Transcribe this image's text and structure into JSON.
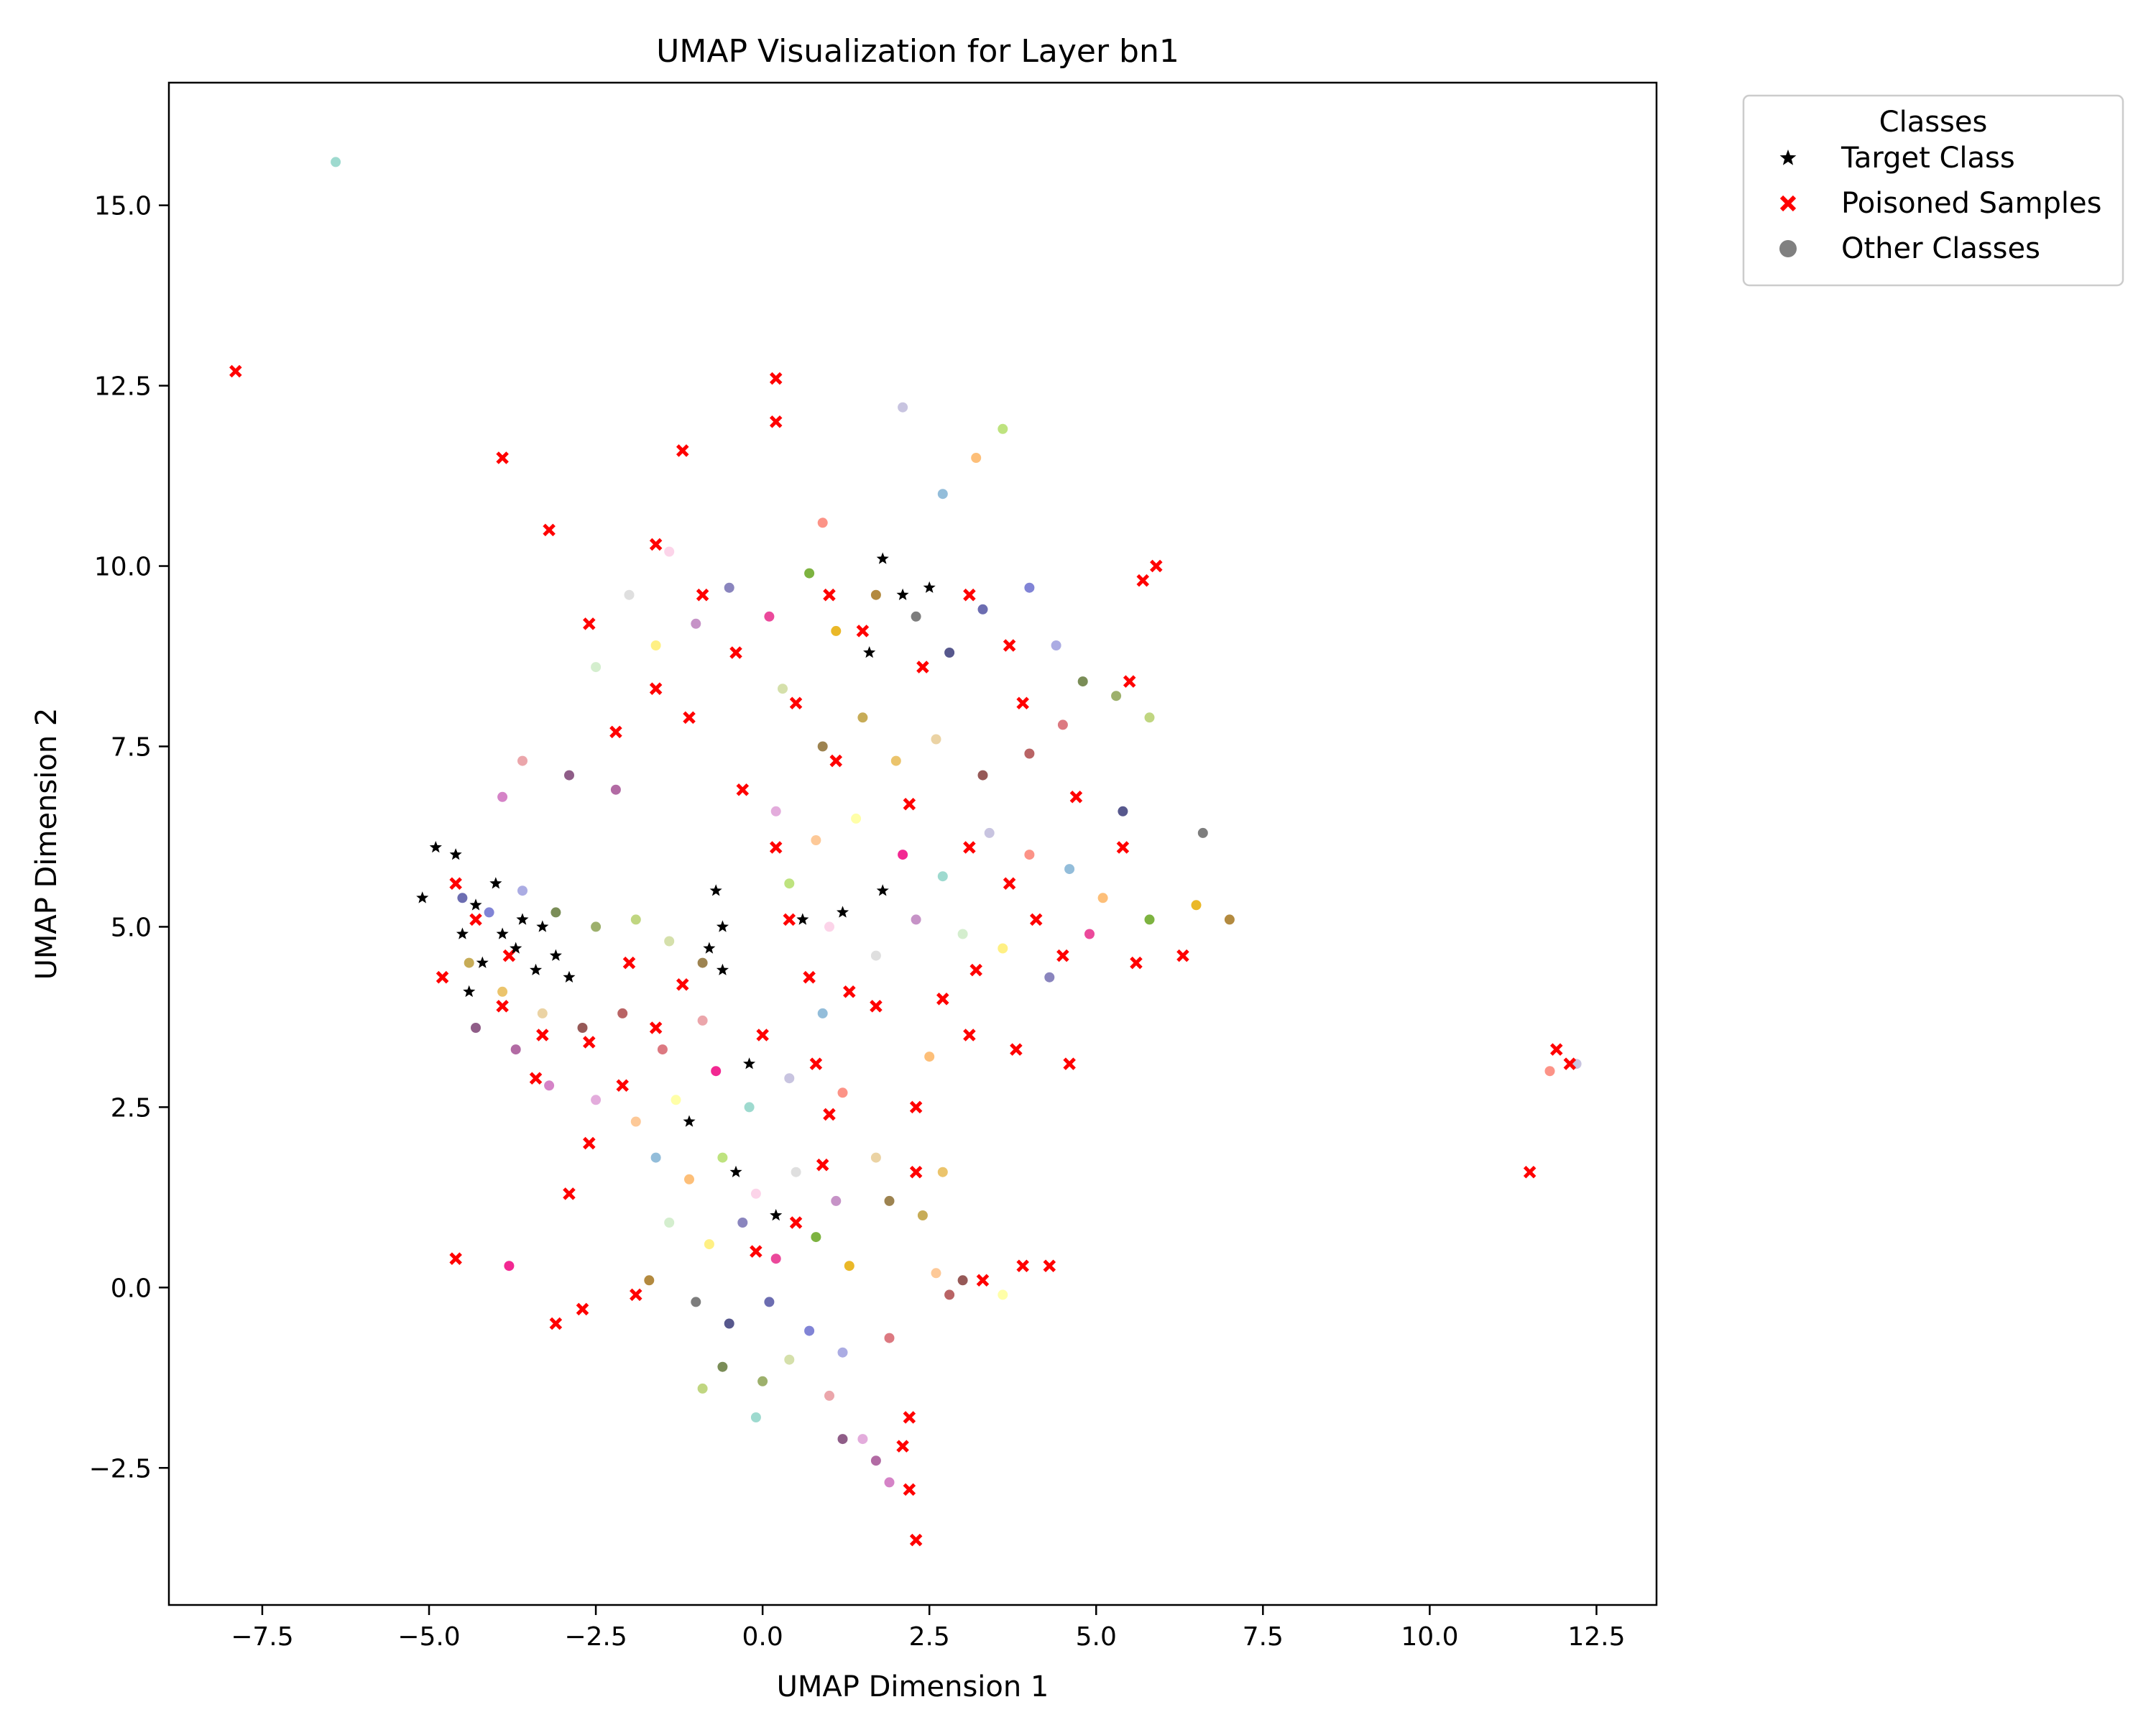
{
  "chart_data": {
    "type": "scatter",
    "title": "UMAP Visualization for Layer bn1",
    "xlabel": "UMAP Dimension 1",
    "ylabel": "UMAP Dimension 2",
    "xlim": [
      -8.9,
      13.4
    ],
    "ylim": [
      -4.4,
      16.7
    ],
    "grid": false,
    "x_ticks": [
      -7.5,
      -5.0,
      -2.5,
      0.0,
      2.5,
      5.0,
      7.5,
      10.0,
      12.5
    ],
    "x_tick_labels": [
      "−7.5",
      "−5.0",
      "−2.5",
      "0.0",
      "2.5",
      "5.0",
      "7.5",
      "10.0",
      "12.5"
    ],
    "y_ticks": [
      -2.5,
      0.0,
      2.5,
      5.0,
      7.5,
      10.0,
      12.5,
      15.0
    ],
    "y_tick_labels": [
      "−2.5",
      "0.0",
      "2.5",
      "5.0",
      "7.5",
      "10.0",
      "12.5",
      "15.0"
    ],
    "legend": {
      "title": "Classes",
      "placement": "outside-top-right",
      "entries": [
        {
          "label": "Target Class",
          "marker": "star",
          "color": "#000000"
        },
        {
          "label": "Poisoned Samples",
          "marker": "x",
          "color": "#ff0000"
        },
        {
          "label": "Other Classes",
          "marker": "circle",
          "color": "#808080"
        }
      ]
    },
    "palette": [
      "#8dd3c7",
      "#bebada",
      "#fb8072",
      "#80b1d3",
      "#fdb462",
      "#b3de69",
      "#fccde5",
      "#d9d9d9",
      "#bc80bd",
      "#ccebc5",
      "#ffed6f",
      "#7570b3",
      "#e7298a",
      "#66a61e",
      "#e6ab02",
      "#a6761d",
      "#666666",
      "#393b79",
      "#5254a3",
      "#6b6ecf",
      "#9c9ede",
      "#637939",
      "#8ca252",
      "#b5cf6b",
      "#cedb9c",
      "#8c6d31",
      "#bd9e39",
      "#e7ba52",
      "#e7cb94",
      "#843c39",
      "#ad494a",
      "#d6616b",
      "#e7969c",
      "#7b4173",
      "#a55194",
      "#ce6dbd",
      "#de9ed6",
      "#fdc086",
      "#ffff99",
      "#f0027f"
    ],
    "series": [
      {
        "name": "Target Class",
        "points": [
          [
            -5.1,
            5.4
          ],
          [
            -4.9,
            6.1
          ],
          [
            -4.6,
            6.0
          ],
          [
            -4.3,
            5.3
          ],
          [
            -4.5,
            4.9
          ],
          [
            -4.2,
            4.5
          ],
          [
            -4.4,
            4.1
          ],
          [
            -3.9,
            4.9
          ],
          [
            -3.6,
            5.1
          ],
          [
            -3.3,
            5.0
          ],
          [
            -3.1,
            4.6
          ],
          [
            -2.9,
            4.3
          ],
          [
            -3.4,
            4.4
          ],
          [
            -4.0,
            5.6
          ],
          [
            -3.7,
            4.7
          ],
          [
            -0.7,
            5.5
          ],
          [
            -0.6,
            5.0
          ],
          [
            -0.8,
            4.7
          ],
          [
            -0.6,
            4.4
          ],
          [
            0.6,
            5.1
          ],
          [
            1.2,
            5.2
          ],
          [
            1.8,
            5.5
          ],
          [
            1.6,
            8.8
          ],
          [
            2.1,
            9.6
          ],
          [
            2.5,
            9.7
          ],
          [
            1.8,
            10.1
          ],
          [
            0.2,
            1.0
          ],
          [
            -0.4,
            1.6
          ],
          [
            -0.2,
            3.1
          ],
          [
            -1.1,
            2.3
          ]
        ]
      },
      {
        "name": "Poisoned Samples",
        "points": [
          [
            -7.9,
            12.7
          ],
          [
            -3.9,
            11.5
          ],
          [
            -3.2,
            10.5
          ],
          [
            -1.2,
            11.6
          ],
          [
            0.2,
            12.6
          ],
          [
            0.2,
            12.0
          ],
          [
            -2.6,
            9.2
          ],
          [
            -1.6,
            10.3
          ],
          [
            -0.9,
            9.6
          ],
          [
            -1.6,
            8.3
          ],
          [
            -1.1,
            7.9
          ],
          [
            -2.2,
            7.7
          ],
          [
            -0.4,
            8.8
          ],
          [
            0.5,
            8.1
          ],
          [
            1.0,
            9.6
          ],
          [
            1.5,
            9.1
          ],
          [
            2.4,
            8.6
          ],
          [
            3.1,
            9.6
          ],
          [
            3.7,
            8.9
          ],
          [
            3.9,
            8.1
          ],
          [
            5.5,
            8.4
          ],
          [
            5.7,
            9.8
          ],
          [
            5.9,
            10.0
          ],
          [
            1.1,
            7.3
          ],
          [
            2.2,
            6.7
          ],
          [
            3.1,
            6.1
          ],
          [
            3.7,
            5.6
          ],
          [
            4.7,
            6.8
          ],
          [
            5.4,
            6.1
          ],
          [
            4.1,
            5.1
          ],
          [
            4.5,
            4.6
          ],
          [
            3.2,
            4.4
          ],
          [
            3.1,
            3.5
          ],
          [
            3.8,
            3.3
          ],
          [
            4.6,
            3.1
          ],
          [
            5.6,
            4.5
          ],
          [
            6.3,
            4.6
          ],
          [
            1.3,
            4.1
          ],
          [
            0.8,
            3.1
          ],
          [
            1.0,
            2.4
          ],
          [
            2.3,
            2.5
          ],
          [
            2.3,
            1.6
          ],
          [
            0.4,
            5.1
          ],
          [
            -0.3,
            6.9
          ],
          [
            0.2,
            6.1
          ],
          [
            -4.6,
            5.6
          ],
          [
            -4.3,
            5.1
          ],
          [
            -3.8,
            4.6
          ],
          [
            -3.9,
            3.9
          ],
          [
            -3.3,
            3.5
          ],
          [
            -3.4,
            2.9
          ],
          [
            -2.6,
            3.4
          ],
          [
            -2.1,
            2.8
          ],
          [
            -1.6,
            3.6
          ],
          [
            -1.2,
            4.2
          ],
          [
            -2.6,
            2.0
          ],
          [
            -2.9,
            1.3
          ],
          [
            -4.6,
            0.4
          ],
          [
            -3.1,
            -0.5
          ],
          [
            -2.7,
            -0.3
          ],
          [
            -1.9,
            -0.1
          ],
          [
            -0.1,
            0.5
          ],
          [
            0.5,
            0.9
          ],
          [
            0.9,
            1.7
          ],
          [
            2.1,
            -2.2
          ],
          [
            2.2,
            -1.8
          ],
          [
            2.2,
            -2.8
          ],
          [
            2.3,
            -3.5
          ],
          [
            3.3,
            0.1
          ],
          [
            3.9,
            0.3
          ],
          [
            4.3,
            0.3
          ],
          [
            11.9,
            3.3
          ],
          [
            12.1,
            3.1
          ],
          [
            11.5,
            1.6
          ],
          [
            -2.0,
            4.5
          ],
          [
            0.0,
            3.5
          ],
          [
            0.7,
            4.3
          ],
          [
            1.7,
            3.9
          ],
          [
            2.7,
            4.0
          ],
          [
            -4.8,
            4.3
          ]
        ]
      },
      {
        "name": "Other Classes",
        "points": [
          [
            -6.4,
            15.6
          ],
          [
            2.1,
            12.2
          ],
          [
            0.9,
            10.6
          ],
          [
            2.7,
            11.0
          ],
          [
            3.2,
            11.5
          ],
          [
            3.6,
            11.9
          ],
          [
            -1.4,
            10.2
          ],
          [
            -2.0,
            9.6
          ],
          [
            -1.0,
            9.2
          ],
          [
            -2.5,
            8.6
          ],
          [
            -1.6,
            8.9
          ],
          [
            -0.5,
            9.7
          ],
          [
            0.1,
            9.3
          ],
          [
            0.7,
            9.9
          ],
          [
            1.1,
            9.1
          ],
          [
            1.7,
            9.6
          ],
          [
            2.3,
            9.3
          ],
          [
            2.8,
            8.8
          ],
          [
            3.3,
            9.4
          ],
          [
            4.0,
            9.7
          ],
          [
            4.4,
            8.9
          ],
          [
            4.8,
            8.4
          ],
          [
            5.3,
            8.2
          ],
          [
            5.8,
            7.9
          ],
          [
            0.3,
            8.3
          ],
          [
            0.9,
            7.5
          ],
          [
            1.5,
            7.9
          ],
          [
            2.0,
            7.3
          ],
          [
            2.6,
            7.6
          ],
          [
            3.3,
            7.1
          ],
          [
            4.0,
            7.4
          ],
          [
            4.5,
            7.8
          ],
          [
            -3.6,
            7.3
          ],
          [
            -2.9,
            7.1
          ],
          [
            -2.2,
            6.9
          ],
          [
            -3.9,
            6.8
          ],
          [
            0.2,
            6.6
          ],
          [
            0.8,
            6.2
          ],
          [
            1.4,
            6.5
          ],
          [
            2.1,
            6.0
          ],
          [
            2.7,
            5.7
          ],
          [
            3.4,
            6.3
          ],
          [
            4.0,
            6.0
          ],
          [
            4.6,
            5.8
          ],
          [
            5.1,
            5.4
          ],
          [
            0.4,
            5.6
          ],
          [
            1.0,
            5.0
          ],
          [
            1.7,
            4.6
          ],
          [
            2.3,
            5.1
          ],
          [
            3.0,
            4.9
          ],
          [
            3.6,
            4.7
          ],
          [
            4.3,
            4.3
          ],
          [
            4.9,
            4.9
          ],
          [
            5.8,
            5.1
          ],
          [
            6.5,
            5.3
          ],
          [
            7.0,
            5.1
          ],
          [
            6.6,
            6.3
          ],
          [
            5.4,
            6.6
          ],
          [
            -4.5,
            5.4
          ],
          [
            -4.1,
            5.2
          ],
          [
            -3.6,
            5.5
          ],
          [
            -3.1,
            5.2
          ],
          [
            -2.5,
            5.0
          ],
          [
            -1.9,
            5.1
          ],
          [
            -1.4,
            4.8
          ],
          [
            -0.9,
            4.5
          ],
          [
            -4.4,
            4.5
          ],
          [
            -3.9,
            4.1
          ],
          [
            -3.3,
            3.8
          ],
          [
            -2.7,
            3.6
          ],
          [
            -2.1,
            3.8
          ],
          [
            -1.5,
            3.3
          ],
          [
            -0.9,
            3.7
          ],
          [
            -4.3,
            3.6
          ],
          [
            -3.7,
            3.3
          ],
          [
            -3.2,
            2.8
          ],
          [
            -2.5,
            2.6
          ],
          [
            -1.9,
            2.3
          ],
          [
            -1.3,
            2.6
          ],
          [
            -0.7,
            3.0
          ],
          [
            -0.2,
            2.5
          ],
          [
            0.4,
            2.9
          ],
          [
            1.2,
            2.7
          ],
          [
            -1.6,
            1.8
          ],
          [
            -1.1,
            1.5
          ],
          [
            -0.6,
            1.8
          ],
          [
            -0.1,
            1.3
          ],
          [
            0.5,
            1.6
          ],
          [
            1.1,
            1.2
          ],
          [
            -1.4,
            0.9
          ],
          [
            -0.8,
            0.6
          ],
          [
            -0.3,
            0.9
          ],
          [
            0.2,
            0.4
          ],
          [
            0.8,
            0.7
          ],
          [
            1.3,
            0.3
          ],
          [
            -1.7,
            0.1
          ],
          [
            -1.0,
            -0.2
          ],
          [
            -0.5,
            -0.5
          ],
          [
            0.1,
            -0.2
          ],
          [
            0.7,
            -0.6
          ],
          [
            1.2,
            -0.9
          ],
          [
            -0.6,
            -1.1
          ],
          [
            0.0,
            -1.3
          ],
          [
            -0.9,
            -1.4
          ],
          [
            0.4,
            -1.0
          ],
          [
            1.9,
            1.2
          ],
          [
            2.4,
            1.0
          ],
          [
            2.7,
            1.6
          ],
          [
            1.7,
            1.8
          ],
          [
            3.0,
            0.1
          ],
          [
            2.8,
            -0.1
          ],
          [
            1.9,
            -0.7
          ],
          [
            1.0,
            -1.5
          ],
          [
            1.2,
            -2.1
          ],
          [
            1.7,
            -2.4
          ],
          [
            1.9,
            -2.7
          ],
          [
            1.5,
            -2.1
          ],
          [
            2.6,
            0.2
          ],
          [
            3.6,
            -0.1
          ],
          [
            -3.8,
            0.3
          ],
          [
            -0.1,
            -1.8
          ],
          [
            12.2,
            3.1
          ],
          [
            11.8,
            3.0
          ],
          [
            0.9,
            3.8
          ],
          [
            2.5,
            3.2
          ]
        ]
      }
    ]
  }
}
